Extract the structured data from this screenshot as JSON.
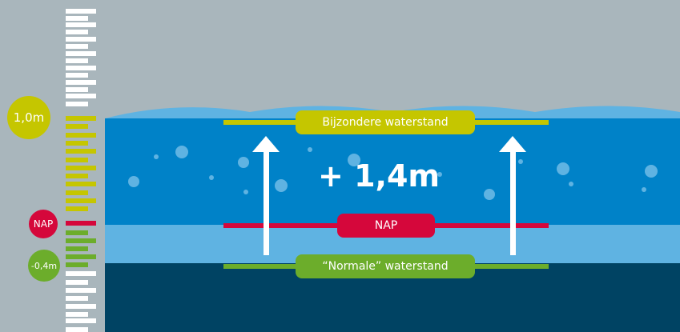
{
  "colors": {
    "background": "#a9b6bc",
    "wave": "#5fb3e2",
    "high_water": "#0082c8",
    "low_band": "#5fb3e2",
    "bottom": "#004363",
    "special_level": "#c5c600",
    "nap": "#d5073b",
    "normal_level": "#6cad2b",
    "scale_white": "#ffffff",
    "bubble": "#5fb3e2",
    "arrow": "#ffffff",
    "text": "#ffffff"
  },
  "scale": {
    "top_label": "1,0m",
    "nap_label": "NAP",
    "bottom_label": "-0,4m"
  },
  "levels": {
    "special": "Bijzondere waterstand",
    "nap": "NAP",
    "normal": "“Normale” waterstand"
  },
  "difference": "+ 1,4m",
  "icons": {
    "arrows": "arrow-up-icon"
  }
}
